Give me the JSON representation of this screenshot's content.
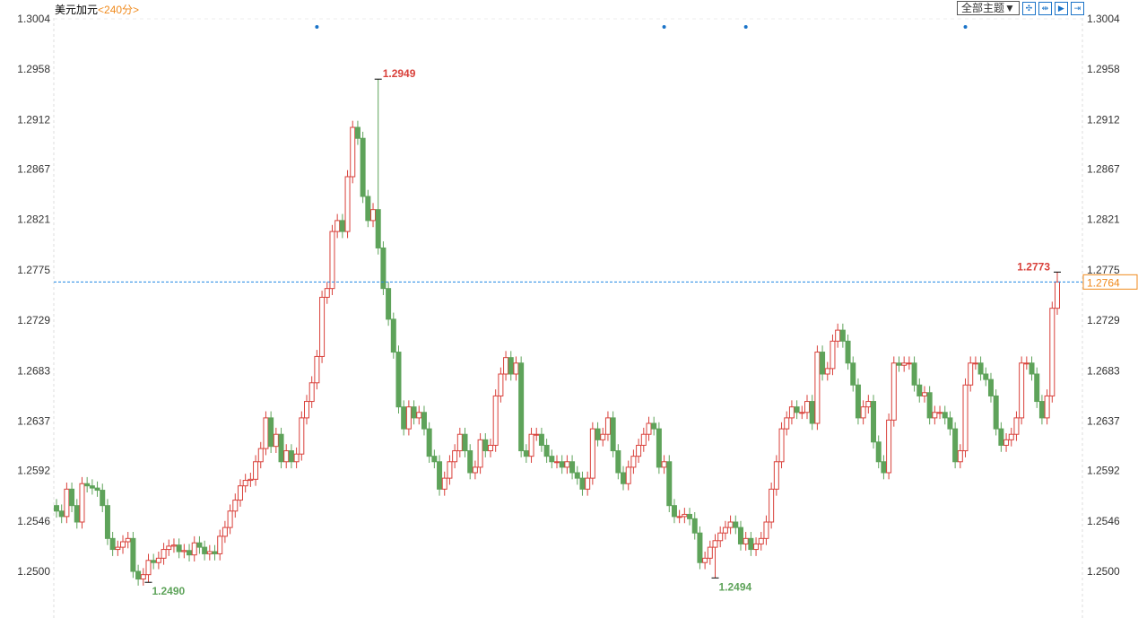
{
  "header": {
    "symbol": "美元加元",
    "period": "<240分>"
  },
  "toolbar": {
    "theme_label": "全部主题▼",
    "tools": [
      "crosshair-icon",
      "range-select-icon",
      "play-step-icon",
      "jump-latest-icon"
    ]
  },
  "colors": {
    "up": "#d9413b",
    "down": "#5ea35a",
    "price_line": "#1e88e5",
    "current_price": "#f08a1c",
    "marker": "#1a73c8"
  },
  "chart_data": {
    "type": "candlestick",
    "ylim": [
      1.25,
      1.3004
    ],
    "y_ticks": [
      "1.3004",
      "1.2958",
      "1.2912",
      "1.2867",
      "1.2821",
      "1.2775",
      "1.2729",
      "1.2683",
      "1.2637",
      "1.2592",
      "1.2546",
      "1.2500"
    ],
    "current_price": "1.2764",
    "first_open": 1.256,
    "close": [
      1.2555,
      1.255,
      1.2575,
      1.256,
      1.2545,
      1.258,
      1.2578,
      1.2576,
      1.2574,
      1.256,
      1.253,
      1.252,
      1.2522,
      1.2527,
      1.253,
      1.25,
      1.2493,
      1.2497,
      1.251,
      1.2508,
      1.2512,
      1.252,
      1.2523,
      1.2524,
      1.2518,
      1.2519,
      1.2515,
      1.2526,
      1.2522,
      1.2516,
      1.2518,
      1.2516,
      1.2532,
      1.254,
      1.2555,
      1.2565,
      1.2578,
      1.2583,
      1.2584,
      1.26,
      1.2612,
      1.264,
      1.2614,
      1.2625,
      1.26,
      1.261,
      1.26,
      1.2607,
      1.264,
      1.2655,
      1.2672,
      1.2696,
      1.275,
      1.2758,
      1.281,
      1.282,
      1.281,
      1.286,
      1.2905,
      1.2895,
      1.2842,
      1.282,
      1.283,
      1.2795,
      1.2758,
      1.273,
      1.27,
      1.265,
      1.263,
      1.265,
      1.264,
      1.2645,
      1.263,
      1.2605,
      1.26,
      1.2575,
      1.2585,
      1.26,
      1.261,
      1.2625,
      1.261,
      1.259,
      1.2595,
      1.262,
      1.261,
      1.2615,
      1.266,
      1.268,
      1.2695,
      1.268,
      1.269,
      1.261,
      1.2605,
      1.2625,
      1.2625,
      1.2615,
      1.2605,
      1.26,
      1.26,
      1.2595,
      1.26,
      1.259,
      1.2585,
      1.2575,
      1.2585,
      1.263,
      1.262,
      1.2625,
      1.264,
      1.261,
      1.259,
      1.258,
      1.2595,
      1.2605,
      1.2615,
      1.2625,
      1.2635,
      1.263,
      1.2595,
      1.26,
      1.256,
      1.255,
      1.255,
      1.2552,
      1.2548,
      1.2535,
      1.2508,
      1.2512,
      1.2522,
      1.2528,
      1.2535,
      1.254,
      1.2545,
      1.254,
      1.2525,
      1.253,
      1.252,
      1.2525,
      1.253,
      1.2545,
      1.2575,
      1.26,
      1.263,
      1.264,
      1.265,
      1.2645,
      1.2645,
      1.2655,
      1.2635,
      1.27,
      1.268,
      1.2685,
      1.271,
      1.272,
      1.271,
      1.269,
      1.267,
      1.264,
      1.265,
      1.2655,
      1.2618,
      1.26,
      1.259,
      1.2638,
      1.269,
      1.2688,
      1.269,
      1.269,
      1.267,
      1.266,
      1.2663,
      1.264,
      1.2645,
      1.2645,
      1.264,
      1.263,
      1.26,
      1.261,
      1.267,
      1.269,
      1.269,
      1.268,
      1.2675,
      1.266,
      1.263,
      1.2615,
      1.262,
      1.2625,
      1.264,
      1.269,
      1.269,
      1.268,
      1.2655,
      1.264,
      1.266,
      1.274,
      1.2764
    ],
    "annotations": [
      {
        "label": "1.2949",
        "value": 1.2949,
        "index": 63,
        "kind": "high"
      },
      {
        "label": "1.2490",
        "value": 1.249,
        "index": 18,
        "kind": "low"
      },
      {
        "label": "1.2494",
        "value": 1.2494,
        "index": 129,
        "kind": "low"
      },
      {
        "label": "1.2773",
        "value": 1.2773,
        "index": 196,
        "kind": "high"
      }
    ],
    "event_markers": [
      51,
      119,
      135,
      178
    ]
  }
}
